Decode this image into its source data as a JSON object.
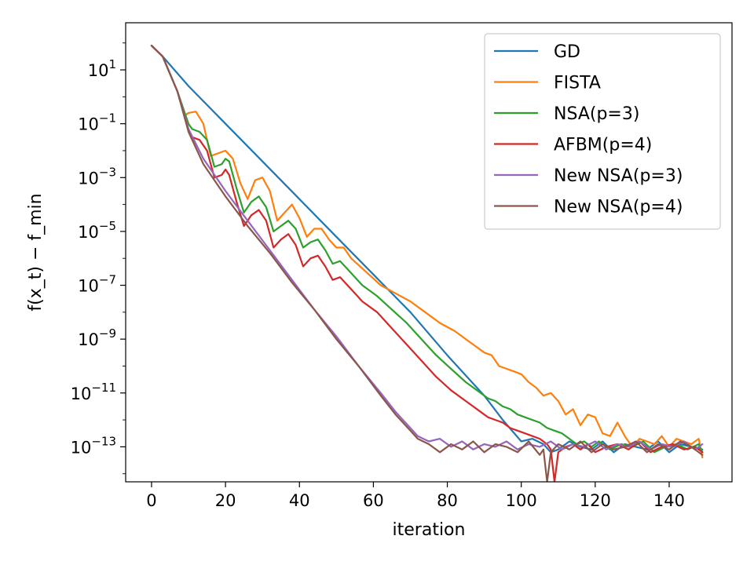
{
  "chart_data": {
    "type": "line",
    "xlabel": "iteration",
    "ylabel": "f(x_t) − f_min",
    "yscale": "log",
    "xlim": [
      -7,
      157
    ],
    "ylim_log10": [
      -14.3,
      2.75
    ],
    "x_ticks": [
      0,
      20,
      40,
      60,
      80,
      100,
      120,
      140
    ],
    "x_tick_labels": [
      "0",
      "20",
      "40",
      "60",
      "80",
      "100",
      "120",
      "140"
    ],
    "y_ticks_log10": [
      1,
      -1,
      -3,
      -5,
      -7,
      -9,
      -11,
      -13
    ],
    "y_tick_exponents": [
      "1",
      "−1",
      "−3",
      "−5",
      "−7",
      "−9",
      "−11",
      "−13"
    ],
    "y_tick_base": "10",
    "legend_position": "top-right",
    "grid": false,
    "series": [
      {
        "name": "GD",
        "color": "#1f77b4",
        "x": [
          0,
          3,
          10,
          20,
          30,
          40,
          50,
          60,
          70,
          80,
          90,
          95,
          100,
          103,
          106,
          108,
          110,
          113,
          116,
          119,
          122,
          125,
          128,
          131,
          134,
          137,
          140,
          143,
          146,
          149
        ],
        "log10_y": [
          1.9,
          1.5,
          0.4,
          -1.0,
          -2.4,
          -3.8,
          -5.2,
          -6.6,
          -8.0,
          -9.6,
          -11.1,
          -12.0,
          -12.8,
          -12.7,
          -12.9,
          -13.2,
          -13.1,
          -12.8,
          -13.0,
          -13.1,
          -12.8,
          -13.2,
          -12.9,
          -13.0,
          -13.1,
          -12.8,
          -13.2,
          -12.9,
          -13.0,
          -13.1
        ]
      },
      {
        "name": "FISTA",
        "color": "#ff7f0e",
        "x": [
          0,
          3,
          7,
          9,
          10,
          12,
          14,
          16,
          18,
          20,
          22,
          24,
          26,
          28,
          30,
          32,
          34,
          36,
          38,
          40,
          42,
          44,
          46,
          48,
          50,
          52,
          54,
          58,
          62,
          66,
          70,
          74,
          78,
          82,
          86,
          90,
          92,
          94,
          96,
          98,
          100,
          102,
          104,
          106,
          108,
          110,
          112,
          114,
          116,
          118,
          120,
          122,
          124,
          126,
          128,
          130,
          132,
          134,
          136,
          138,
          140,
          142,
          144,
          146,
          148,
          149
        ],
        "log10_y": [
          1.9,
          1.5,
          0.2,
          -0.7,
          -0.6,
          -0.55,
          -1.0,
          -2.2,
          -2.1,
          -2.0,
          -2.3,
          -3.2,
          -3.8,
          -3.1,
          -3.0,
          -3.5,
          -4.6,
          -4.3,
          -4.0,
          -4.5,
          -5.2,
          -4.9,
          -4.9,
          -5.3,
          -5.6,
          -5.6,
          -6.0,
          -6.5,
          -7.0,
          -7.3,
          -7.6,
          -8.0,
          -8.4,
          -8.7,
          -9.1,
          -9.5,
          -9.6,
          -10.0,
          -10.1,
          -10.2,
          -10.3,
          -10.6,
          -10.8,
          -11.1,
          -11.0,
          -11.3,
          -11.8,
          -11.6,
          -12.2,
          -11.8,
          -11.9,
          -12.5,
          -12.6,
          -12.1,
          -12.6,
          -13.0,
          -12.7,
          -12.8,
          -12.9,
          -12.6,
          -13.0,
          -12.7,
          -12.8,
          -12.9,
          -12.7,
          -13.4
        ]
      },
      {
        "name": "NSA(p=3)",
        "color": "#2ca02c",
        "x": [
          0,
          3,
          7,
          10,
          11,
          13,
          15,
          17,
          19,
          20,
          21,
          23,
          25,
          27,
          29,
          31,
          33,
          35,
          37,
          39,
          41,
          43,
          45,
          47,
          49,
          51,
          53,
          55,
          57,
          61,
          65,
          69,
          73,
          77,
          81,
          85,
          89,
          91,
          93,
          95,
          97,
          99,
          101,
          103,
          105,
          107,
          109,
          111,
          113,
          115,
          117,
          119,
          121,
          124,
          127,
          130,
          133,
          136,
          139,
          142,
          145,
          148,
          149
        ],
        "log10_y": [
          1.9,
          1.5,
          0.2,
          -1.0,
          -1.2,
          -1.3,
          -1.6,
          -2.6,
          -2.5,
          -2.3,
          -2.4,
          -3.4,
          -4.3,
          -3.9,
          -3.7,
          -4.1,
          -5.0,
          -4.8,
          -4.6,
          -4.9,
          -5.6,
          -5.4,
          -5.3,
          -5.7,
          -6.2,
          -6.1,
          -6.4,
          -6.7,
          -7.0,
          -7.4,
          -7.9,
          -8.4,
          -9.0,
          -9.6,
          -10.1,
          -10.6,
          -11.0,
          -11.2,
          -11.3,
          -11.5,
          -11.6,
          -11.8,
          -11.9,
          -12.0,
          -12.1,
          -12.3,
          -12.4,
          -12.5,
          -12.7,
          -12.9,
          -12.8,
          -13.0,
          -12.8,
          -13.1,
          -12.9,
          -13.0,
          -12.8,
          -13.2,
          -13.0,
          -12.9,
          -13.1,
          -12.9,
          -13.2
        ]
      },
      {
        "name": "AFBM(p=4)",
        "color": "#d62728",
        "x": [
          0,
          3,
          7,
          10,
          11,
          13,
          15,
          17,
          19,
          20,
          21,
          23,
          25,
          27,
          29,
          31,
          33,
          35,
          37,
          39,
          41,
          43,
          45,
          47,
          49,
          51,
          53,
          55,
          57,
          61,
          65,
          69,
          73,
          77,
          81,
          85,
          89,
          91,
          93,
          95,
          97,
          99,
          101,
          103,
          105,
          107,
          108,
          109,
          110,
          112,
          114,
          116,
          118,
          120,
          123,
          126,
          129,
          132,
          135,
          138,
          141,
          144,
          147,
          149
        ],
        "log10_y": [
          1.9,
          1.5,
          0.2,
          -1.2,
          -1.5,
          -1.6,
          -2.0,
          -3.0,
          -2.9,
          -2.7,
          -2.9,
          -3.9,
          -4.8,
          -4.4,
          -4.2,
          -4.6,
          -5.6,
          -5.3,
          -5.1,
          -5.5,
          -6.3,
          -6.0,
          -5.9,
          -6.3,
          -6.8,
          -6.7,
          -7.0,
          -7.3,
          -7.6,
          -8.0,
          -8.6,
          -9.2,
          -9.8,
          -10.4,
          -10.9,
          -11.3,
          -11.7,
          -11.9,
          -12.0,
          -12.1,
          -12.3,
          -12.4,
          -12.5,
          -12.6,
          -12.7,
          -12.9,
          -13.1,
          -14.3,
          -13.2,
          -13.0,
          -12.9,
          -13.1,
          -12.9,
          -13.2,
          -13.0,
          -12.9,
          -13.1,
          -12.8,
          -13.2,
          -13.0,
          -12.9,
          -13.1,
          -13.0,
          -13.2
        ]
      },
      {
        "name": "New NSA(p=3)",
        "color": "#9467bd",
        "x": [
          0,
          3,
          7,
          10,
          14,
          20,
          26,
          32,
          38,
          44,
          50,
          56,
          62,
          66,
          70,
          72,
          75,
          78,
          81,
          84,
          87,
          90,
          93,
          96,
          99,
          102,
          105,
          108,
          111,
          114,
          117,
          120,
          123,
          126,
          129,
          132,
          135,
          138,
          141,
          144,
          147,
          149
        ],
        "log10_y": [
          1.9,
          1.5,
          0.2,
          -1.2,
          -2.3,
          -3.5,
          -4.6,
          -5.7,
          -6.8,
          -7.9,
          -8.9,
          -10.0,
          -11.0,
          -11.7,
          -12.3,
          -12.6,
          -12.8,
          -12.7,
          -13.0,
          -12.8,
          -13.1,
          -12.9,
          -13.0,
          -12.8,
          -13.1,
          -12.9,
          -13.0,
          -12.8,
          -13.1,
          -12.9,
          -13.0,
          -12.8,
          -13.1,
          -12.9,
          -13.0,
          -12.8,
          -13.1,
          -12.9,
          -13.0,
          -12.8,
          -13.1,
          -12.9
        ]
      },
      {
        "name": "New NSA(p=4)",
        "color": "#8c564b",
        "x": [
          0,
          3,
          7,
          10,
          14,
          20,
          26,
          32,
          38,
          44,
          50,
          56,
          62,
          66,
          70,
          72,
          75,
          78,
          81,
          84,
          87,
          90,
          93,
          96,
          99,
          102,
          105,
          106,
          107,
          108,
          110,
          113,
          116,
          119,
          122,
          125,
          128,
          131,
          134,
          137,
          140,
          143,
          146,
          149
        ],
        "log10_y": [
          1.9,
          1.5,
          0.2,
          -1.3,
          -2.5,
          -3.7,
          -4.8,
          -5.8,
          -6.9,
          -7.9,
          -9.0,
          -10.0,
          -11.1,
          -11.8,
          -12.4,
          -12.7,
          -12.9,
          -13.2,
          -12.9,
          -13.1,
          -12.8,
          -13.2,
          -12.9,
          -13.0,
          -13.2,
          -12.8,
          -13.3,
          -13.1,
          -14.3,
          -13.2,
          -12.9,
          -13.1,
          -12.8,
          -13.2,
          -12.9,
          -13.1,
          -13.0,
          -12.8,
          -13.2,
          -12.9,
          -13.1,
          -12.8,
          -13.0,
          -13.3
        ]
      }
    ]
  }
}
